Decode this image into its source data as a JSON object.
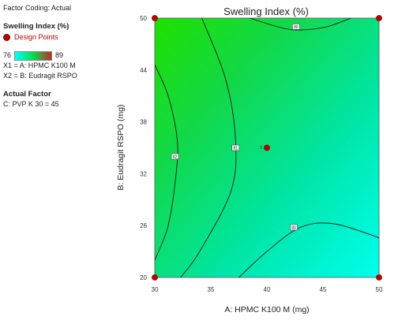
{
  "panel": {
    "coding_label": "Factor Coding: Actual",
    "response_title": "Swelling Index (%)",
    "legend_label": "Design Points",
    "scale_min": "76",
    "scale_max": "89",
    "x1_label": "X1 = A: HPMC K100 M",
    "x2_label": "X2 = B: Eudragit RSPO",
    "actual_factor_title": "Actual Factor",
    "actual_factor_value": "C: PVP K 30 = 45"
  },
  "colors": {
    "scale_low": "#00ffff",
    "scale_mid": "#00e04a",
    "scale_high": "#c62828",
    "design_point": "#c00000",
    "contour_line": "#1a1a1a"
  },
  "chart_data": {
    "type": "contour",
    "title": "Swelling Index (%)",
    "xlabel": "A: HPMC K100 M  (mg)",
    "ylabel": "B: Eudragit RSPO  (mg)",
    "xlim": [
      30,
      50
    ],
    "ylim": [
      20,
      50
    ],
    "x_ticks": [
      30,
      35,
      40,
      45,
      50
    ],
    "y_ticks": [
      20,
      26,
      32,
      38,
      44,
      50
    ],
    "x_tick_labels": [
      "30",
      "35",
      "40",
      "45",
      "50"
    ],
    "y_tick_labels": [
      "20",
      "26",
      "32",
      "38",
      "44",
      "50"
    ],
    "contours": [
      {
        "level": 82,
        "label": "82",
        "label_at": [
          31.8,
          34.0
        ],
        "points": [
          [
            30,
            44.6
          ],
          [
            31.2,
            41
          ],
          [
            32,
            36
          ],
          [
            31.9,
            32
          ],
          [
            31.2,
            26
          ],
          [
            30,
            22
          ]
        ]
      },
      {
        "level": 81,
        "label": "81",
        "label_at": [
          37.2,
          35.0
        ],
        "points": [
          [
            34.2,
            50
          ],
          [
            36.3,
            43
          ],
          [
            37.2,
            36
          ],
          [
            36.8,
            30
          ],
          [
            34,
            23
          ],
          [
            32.3,
            20
          ]
        ]
      },
      {
        "level": 80,
        "label": "80",
        "label_at": [
          42.6,
          49.0
        ],
        "points": [
          [
            38.5,
            50
          ],
          [
            42,
            48.7
          ],
          [
            45,
            48.9
          ],
          [
            47.5,
            50
          ]
        ]
      },
      {
        "level": 80,
        "label": "80",
        "label_at": [
          42.4,
          25.8
        ],
        "points": [
          [
            37.5,
            20
          ],
          [
            40,
            23
          ],
          [
            43,
            25.8
          ],
          [
            46,
            26.2
          ],
          [
            50,
            24.6
          ]
        ]
      }
    ],
    "design_points": [
      {
        "x": 30,
        "y": 50
      },
      {
        "x": 50,
        "y": 50
      },
      {
        "x": 30,
        "y": 20
      },
      {
        "x": 50,
        "y": 20
      },
      {
        "x": 40,
        "y": 35,
        "label": "3"
      }
    ]
  }
}
